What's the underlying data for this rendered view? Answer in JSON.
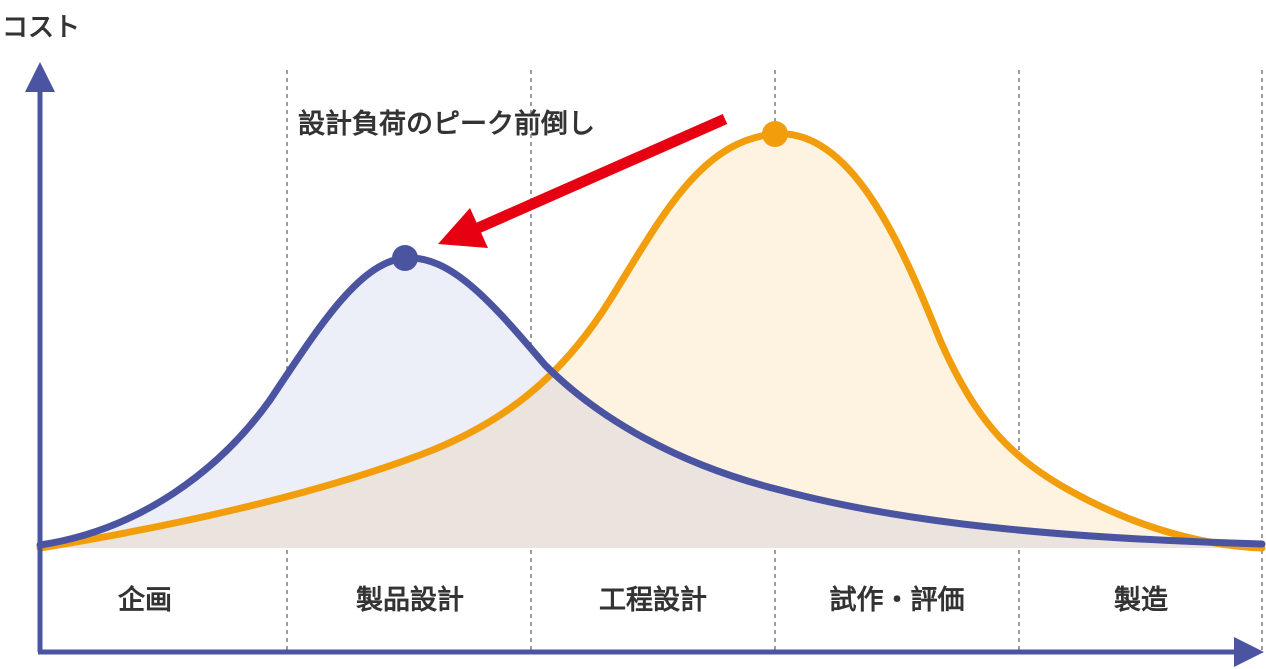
{
  "chart_data": {
    "type": "area",
    "ylabel": "コスト",
    "xlabel": "",
    "annotation": "設計負荷のピーク前倒し",
    "phases": [
      "企画",
      "製品設計",
      "工程設計",
      "試作・評価",
      "製造"
    ],
    "series": [
      {
        "peak_phase": "製品設計",
        "color": "#4a54a0",
        "fill": "#eceef8"
      },
      {
        "peak_phase": "試作・評価",
        "color": "#f29e0c",
        "fill": "#fdf3e0"
      }
    ],
    "arrow_color": "#e60012",
    "grid": "vertical-dashed-phase-dividers"
  }
}
